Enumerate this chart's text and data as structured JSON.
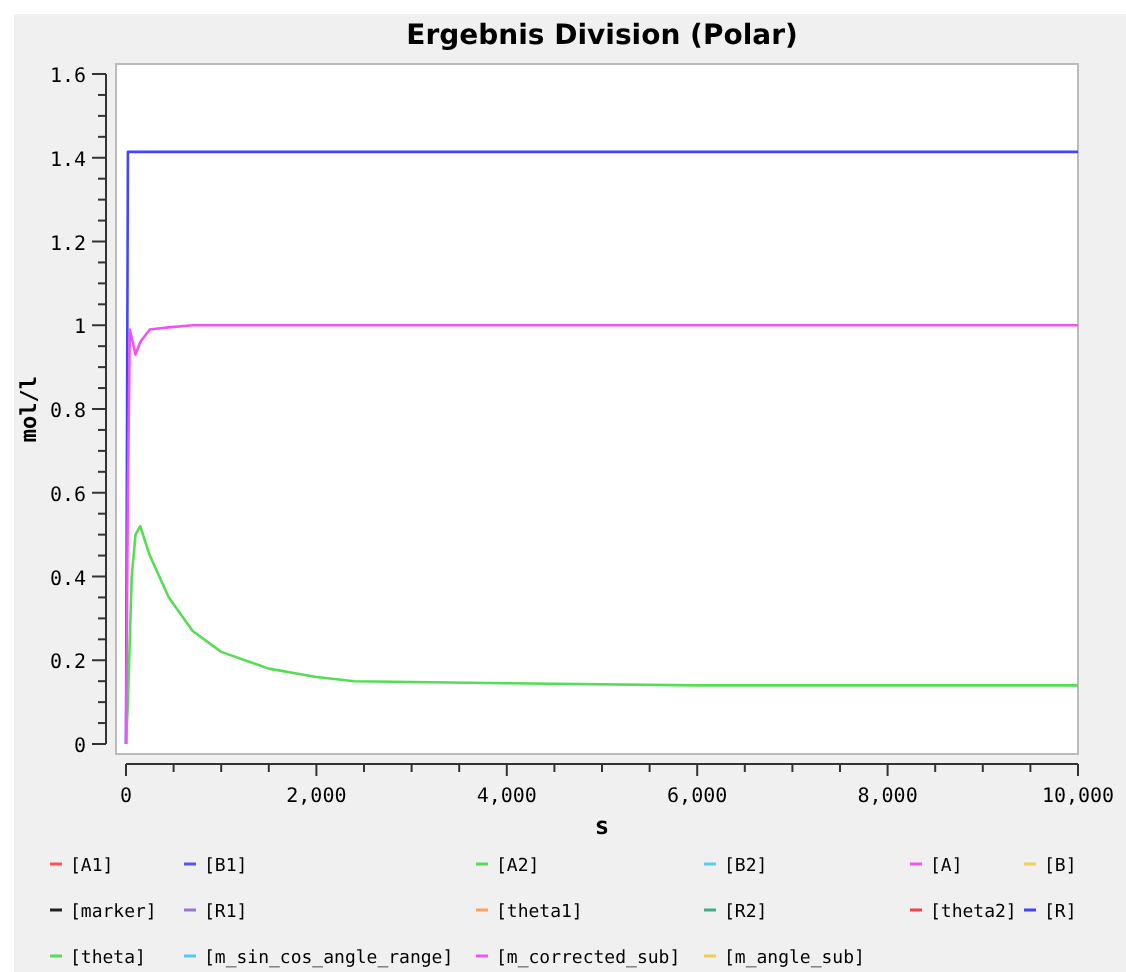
{
  "chart_data": {
    "type": "line",
    "title": "Ergebnis Division (Polar)",
    "xlabel": "s",
    "ylabel": "mol/l",
    "xlim": [
      0,
      10000
    ],
    "ylim": [
      0,
      1.6
    ],
    "xticks": [
      0,
      {
        "value": 500,
        "label": null
      },
      {
        "value": 1000,
        "label": null
      },
      {
        "value": 1500,
        "label": null
      },
      {
        "value": 2000,
        "label": "2,000"
      },
      {
        "value": 2500,
        "label": null
      },
      {
        "value": 3000,
        "label": null
      },
      {
        "value": 3500,
        "label": null
      },
      {
        "value": 4000,
        "label": "4,000"
      },
      {
        "value": 4500,
        "label": null
      },
      {
        "value": 5000,
        "label": null
      },
      {
        "value": 5500,
        "label": null
      },
      {
        "value": 6000,
        "label": "6,000"
      },
      {
        "value": 6500,
        "label": null
      },
      {
        "value": 7000,
        "label": null
      },
      {
        "value": 7500,
        "label": null
      },
      {
        "value": 8000,
        "label": "8,000"
      },
      {
        "value": 8500,
        "label": null
      },
      {
        "value": 9000,
        "label": null
      },
      {
        "value": 9500,
        "label": null
      },
      {
        "value": 10000,
        "label": "10,000"
      }
    ],
    "yticks": [
      0,
      {
        "value": 0.05,
        "label": null
      },
      {
        "value": 0.1,
        "label": null
      },
      {
        "value": 0.15,
        "label": null
      },
      0.2,
      {
        "value": 0.25,
        "label": null
      },
      {
        "value": 0.3,
        "label": null
      },
      {
        "value": 0.35,
        "label": null
      },
      0.4,
      {
        "value": 0.45,
        "label": null
      },
      {
        "value": 0.5,
        "label": null
      },
      {
        "value": 0.55,
        "label": null
      },
      0.6,
      {
        "value": 0.65,
        "label": null
      },
      {
        "value": 0.7,
        "label": null
      },
      {
        "value": 0.75,
        "label": null
      },
      0.8,
      {
        "value": 0.85,
        "label": null
      },
      {
        "value": 0.9,
        "label": null
      },
      {
        "value": 0.95,
        "label": null
      },
      1,
      {
        "value": 1.05,
        "label": null
      },
      {
        "value": 1.1,
        "label": null
      },
      {
        "value": 1.15,
        "label": null
      },
      1.2,
      {
        "value": 1.25,
        "label": null
      },
      {
        "value": 1.3,
        "label": null
      },
      {
        "value": 1.35,
        "label": null
      },
      1.4,
      {
        "value": 1.45,
        "label": null
      },
      {
        "value": 1.5,
        "label": null
      },
      {
        "value": 1.55,
        "label": null
      },
      1.6
    ],
    "grid": false,
    "legend": "bottom",
    "line_style": "solid",
    "marker": "none",
    "x": [
      0,
      20,
      40,
      60,
      100,
      150,
      250,
      450,
      700,
      1000,
      1500,
      2000,
      2400,
      4000,
      6000,
      10000
    ],
    "series": [
      {
        "name": "[A1]",
        "color": "#ff5555",
        "values": [
          null,
          null,
          null,
          null,
          null,
          null,
          null,
          null,
          null,
          null,
          null,
          null,
          null,
          null,
          null,
          null
        ]
      },
      {
        "name": "[B1]",
        "color": "#5555ff",
        "values": [
          null,
          null,
          null,
          null,
          null,
          null,
          null,
          null,
          null,
          null,
          null,
          null,
          null,
          null,
          null,
          null
        ]
      },
      {
        "name": "[A2]",
        "color": "#55dd55",
        "values": [
          null,
          null,
          null,
          null,
          null,
          null,
          null,
          null,
          null,
          null,
          null,
          null,
          null,
          null,
          null,
          null
        ]
      },
      {
        "name": "[B2]",
        "color": "#55ccee",
        "values": [
          null,
          null,
          null,
          null,
          null,
          null,
          null,
          null,
          null,
          null,
          null,
          null,
          null,
          null,
          null,
          null
        ]
      },
      {
        "name": "[A]",
        "color": "#ee55ee",
        "values": [
          null,
          null,
          null,
          null,
          null,
          null,
          null,
          null,
          null,
          null,
          null,
          null,
          null,
          null,
          null,
          null
        ]
      },
      {
        "name": "[B]",
        "color": "#eecc55",
        "values": [
          null,
          null,
          null,
          null,
          null,
          null,
          null,
          null,
          null,
          null,
          null,
          null,
          null,
          null,
          null,
          null
        ]
      },
      {
        "name": "[marker]",
        "color": "#222222",
        "values": [
          null,
          null,
          null,
          null,
          null,
          null,
          null,
          null,
          null,
          null,
          null,
          null,
          null,
          null,
          null,
          null
        ]
      },
      {
        "name": "[R1]",
        "color": "#9977cc",
        "values": [
          null,
          null,
          null,
          null,
          null,
          null,
          null,
          null,
          null,
          null,
          null,
          null,
          null,
          null,
          null,
          null
        ]
      },
      {
        "name": "[theta1]",
        "color": "#ffa060",
        "values": [
          null,
          null,
          null,
          null,
          null,
          null,
          null,
          null,
          null,
          null,
          null,
          null,
          null,
          null,
          null,
          null
        ]
      },
      {
        "name": "[R2]",
        "color": "#44aa88",
        "values": [
          null,
          null,
          null,
          null,
          null,
          null,
          null,
          null,
          null,
          null,
          null,
          null,
          null,
          null,
          null,
          null
        ]
      },
      {
        "name": "[theta2]",
        "color": "#ee4444",
        "values": [
          null,
          null,
          null,
          null,
          null,
          null,
          null,
          null,
          null,
          null,
          null,
          null,
          null,
          null,
          null,
          null
        ]
      },
      {
        "name": "[R]",
        "color": "#4444ff",
        "values": [
          0,
          1.414,
          1.414,
          1.414,
          1.414,
          1.414,
          1.414,
          1.414,
          1.414,
          1.414,
          1.414,
          1.414,
          1.414,
          1.414,
          1.414,
          1.414
        ]
      },
      {
        "name": "[theta]",
        "color": "#55dd55",
        "values": [
          0,
          0.1,
          0.25,
          0.4,
          0.5,
          0.52,
          0.45,
          0.35,
          0.27,
          0.22,
          0.18,
          0.16,
          0.15,
          0.145,
          0.14,
          0.14
        ]
      },
      {
        "name": "[m_sin_cos_angle_range]",
        "color": "#55ccee",
        "values": [
          null,
          null,
          null,
          null,
          null,
          null,
          null,
          null,
          null,
          null,
          null,
          null,
          null,
          null,
          null,
          null
        ]
      },
      {
        "name": "[m_corrected_sub]",
        "color": "#ee55ee",
        "values": [
          0,
          0.6,
          0.99,
          0.97,
          0.93,
          0.96,
          0.99,
          0.995,
          1,
          1,
          1,
          1,
          1,
          1,
          1,
          1
        ]
      },
      {
        "name": "[m_angle_sub]",
        "color": "#eecc55",
        "values": [
          null,
          null,
          null,
          null,
          null,
          null,
          null,
          null,
          null,
          null,
          null,
          null,
          null,
          null,
          null,
          null
        ]
      }
    ]
  }
}
